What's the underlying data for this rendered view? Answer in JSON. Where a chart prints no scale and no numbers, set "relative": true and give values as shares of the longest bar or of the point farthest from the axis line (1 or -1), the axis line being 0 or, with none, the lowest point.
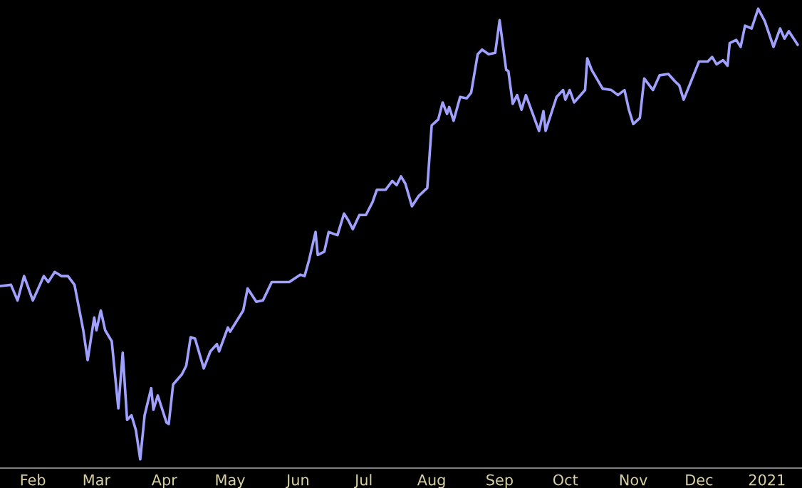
{
  "chart_data": {
    "type": "line",
    "relative": true,
    "xlim": [
      "2020-01-17",
      "2021-01-17"
    ],
    "xticks": [
      {
        "value": "2020-02-01",
        "label": "Feb"
      },
      {
        "value": "2020-03-01",
        "label": "Mar"
      },
      {
        "value": "2020-04-01",
        "label": "Apr"
      },
      {
        "value": "2020-05-01",
        "label": "May"
      },
      {
        "value": "2020-06-01",
        "label": "Jun"
      },
      {
        "value": "2020-07-01",
        "label": "Jul"
      },
      {
        "value": "2020-08-01",
        "label": "Aug"
      },
      {
        "value": "2020-09-01",
        "label": "Sep"
      },
      {
        "value": "2020-10-01",
        "label": "Oct"
      },
      {
        "value": "2020-11-01",
        "label": "Nov"
      },
      {
        "value": "2020-12-01",
        "label": "Dec"
      },
      {
        "value": "2021-01-01",
        "label": "2021"
      }
    ],
    "grid": false,
    "legend": false,
    "marker": "none",
    "line_style": "solid",
    "series": [
      {
        "color": "#a0a0ff",
        "x": [
          "2020-01-17",
          "2020-01-22",
          "2020-01-25",
          "2020-01-28",
          "2020-02-01",
          "2020-02-06",
          "2020-02-08",
          "2020-02-11",
          "2020-02-14",
          "2020-02-17",
          "2020-02-20",
          "2020-02-24",
          "2020-02-26",
          "2020-02-29",
          "2020-03-01",
          "2020-03-03",
          "2020-03-05",
          "2020-03-08",
          "2020-03-11",
          "2020-03-13",
          "2020-03-15",
          "2020-03-17",
          "2020-03-19",
          "2020-03-21",
          "2020-03-23",
          "2020-03-26",
          "2020-03-27",
          "2020-03-29",
          "2020-04-02",
          "2020-04-03",
          "2020-04-05",
          "2020-04-09",
          "2020-04-11",
          "2020-04-13",
          "2020-04-15",
          "2020-04-19",
          "2020-04-22",
          "2020-04-25",
          "2020-04-26",
          "2020-04-30",
          "2020-05-01",
          "2020-05-07",
          "2020-05-09",
          "2020-05-13",
          "2020-05-16",
          "2020-05-20",
          "2020-05-28",
          "2020-06-02",
          "2020-06-04",
          "2020-06-06",
          "2020-06-09",
          "2020-06-10",
          "2020-06-13",
          "2020-06-15",
          "2020-06-19",
          "2020-06-22",
          "2020-06-24",
          "2020-06-26",
          "2020-06-29",
          "2020-07-02",
          "2020-07-05",
          "2020-07-07",
          "2020-07-11",
          "2020-07-14",
          "2020-07-16",
          "2020-07-18",
          "2020-07-20",
          "2020-07-23",
          "2020-07-26",
          "2020-07-30",
          "2020-08-01",
          "2020-08-04",
          "2020-08-06",
          "2020-08-08",
          "2020-08-09",
          "2020-08-11",
          "2020-08-14",
          "2020-08-17",
          "2020-08-19",
          "2020-08-22",
          "2020-08-24",
          "2020-08-27",
          "2020-08-30",
          "2020-09-01",
          "2020-09-04",
          "2020-09-05",
          "2020-09-07",
          "2020-09-09",
          "2020-09-11",
          "2020-09-13",
          "2020-09-19",
          "2020-09-21",
          "2020-09-22",
          "2020-09-27",
          "2020-09-30",
          "2020-10-01",
          "2020-10-03",
          "2020-10-05",
          "2020-10-10",
          "2020-10-11",
          "2020-10-13",
          "2020-10-18",
          "2020-10-22",
          "2020-10-25",
          "2020-10-28",
          "2020-10-30",
          "2020-11-01",
          "2020-11-04",
          "2020-11-06",
          "2020-11-10",
          "2020-11-13",
          "2020-11-17",
          "2020-11-20",
          "2020-11-22",
          "2020-11-24",
          "2020-12-01",
          "2020-12-05",
          "2020-12-07",
          "2020-12-09",
          "2020-12-12",
          "2020-12-14",
          "2020-12-15",
          "2020-12-18",
          "2020-12-20",
          "2020-12-22",
          "2020-12-25",
          "2020-12-28",
          "2020-12-31",
          "2021-01-04",
          "2021-01-07",
          "2021-01-09",
          "2021-01-11",
          "2021-01-15"
        ],
        "values": [
          0.396,
          0.399,
          0.365,
          0.418,
          0.365,
          0.418,
          0.405,
          0.427,
          0.418,
          0.418,
          0.399,
          0.3,
          0.235,
          0.328,
          0.3,
          0.343,
          0.3,
          0.276,
          0.13,
          0.251,
          0.105,
          0.115,
          0.083,
          0.019,
          0.115,
          0.174,
          0.127,
          0.158,
          0.099,
          0.096,
          0.182,
          0.204,
          0.223,
          0.285,
          0.282,
          0.217,
          0.254,
          0.27,
          0.254,
          0.306,
          0.297,
          0.343,
          0.391,
          0.362,
          0.365,
          0.405,
          0.405,
          0.421,
          0.418,
          0.452,
          0.514,
          0.464,
          0.471,
          0.514,
          0.507,
          0.554,
          0.539,
          0.52,
          0.551,
          0.551,
          0.579,
          0.606,
          0.606,
          0.625,
          0.616,
          0.635,
          0.619,
          0.57,
          0.592,
          0.61,
          0.746,
          0.759,
          0.796,
          0.771,
          0.786,
          0.756,
          0.808,
          0.805,
          0.817,
          0.901,
          0.911,
          0.901,
          0.904,
          0.975,
          0.867,
          0.864,
          0.793,
          0.812,
          0.78,
          0.812,
          0.734,
          0.777,
          0.734,
          0.808,
          0.823,
          0.802,
          0.823,
          0.796,
          0.823,
          0.892,
          0.867,
          0.826,
          0.823,
          0.812,
          0.823,
          0.78,
          0.749,
          0.762,
          0.848,
          0.823,
          0.855,
          0.858,
          0.842,
          0.833,
          0.802,
          0.885,
          0.885,
          0.895,
          0.879,
          0.888,
          0.876,
          0.925,
          0.932,
          0.917,
          0.963,
          0.957,
          1,
          0.973,
          0.917,
          0.957,
          0.935,
          0.951,
          0.922
        ]
      }
    ]
  }
}
